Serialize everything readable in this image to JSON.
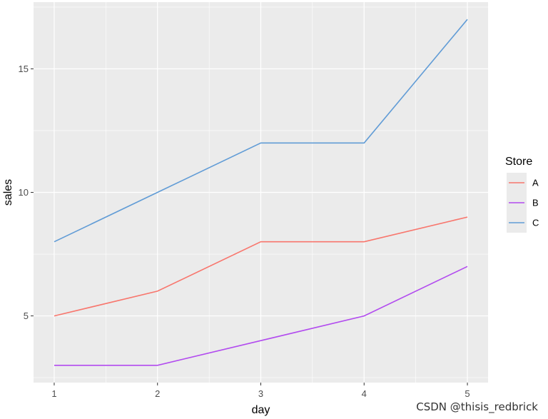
{
  "chart_data": {
    "type": "line",
    "x": [
      1,
      2,
      3,
      4,
      5
    ],
    "series": [
      {
        "name": "A",
        "values": [
          5,
          6,
          8,
          8,
          9
        ],
        "color": "#F8766D"
      },
      {
        "name": "B",
        "values": [
          3,
          3,
          4,
          5,
          7
        ],
        "color": "#B24BEF"
      },
      {
        "name": "C",
        "values": [
          8,
          10,
          12,
          12,
          17
        ],
        "color": "#619CD6"
      }
    ],
    "xlabel": "day",
    "ylabel": "sales",
    "xlim": [
      0.8,
      5.2
    ],
    "ylim": [
      2.3,
      17.7
    ],
    "x_ticks": [
      1,
      2,
      3,
      4,
      5
    ],
    "y_ticks": [
      5,
      10,
      15
    ],
    "grid": true,
    "legend": {
      "title": "Store",
      "position": "right"
    },
    "panel_background": "#EBEBEB"
  },
  "watermark": "CSDN @thisis_redbrick"
}
